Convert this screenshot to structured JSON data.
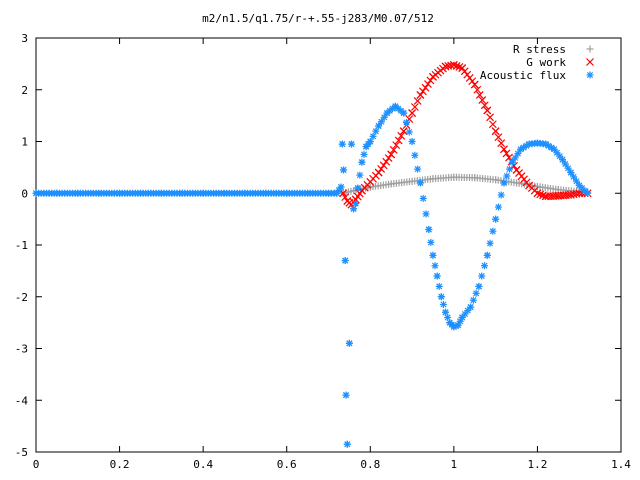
{
  "chart_data": {
    "type": "scatter",
    "title": "m2/n1.5/q1.75/r-+.55-j283/M0.07/512",
    "xlabel": "",
    "ylabel": "",
    "xlim": [
      0,
      1.4
    ],
    "ylim": [
      -5,
      3
    ],
    "x_ticks": [
      "0",
      "0.2",
      "0.4",
      "0.6",
      "0.8",
      "1",
      "1.2",
      "1.4"
    ],
    "y_ticks": [
      "3",
      "2",
      "1",
      "0",
      "-1",
      "-2",
      "-3",
      "-4",
      "-5"
    ],
    "grid": false,
    "legend_position": "top-right",
    "series": [
      {
        "name": "R stress",
        "color": "#a0a0a0",
        "marker": "plus",
        "x": [
          0.735,
          0.76,
          0.8,
          0.85,
          0.9,
          0.95,
          1.0,
          1.05,
          1.1,
          1.15,
          1.2,
          1.25,
          1.3,
          1.32
        ],
        "y": [
          0.0,
          0.05,
          0.12,
          0.18,
          0.23,
          0.28,
          0.31,
          0.3,
          0.26,
          0.2,
          0.13,
          0.07,
          0.03,
          0.02
        ]
      },
      {
        "name": "G work",
        "color": "#ff0000",
        "marker": "cross",
        "x": [
          0.735,
          0.745,
          0.755,
          0.765,
          0.78,
          0.8,
          0.82,
          0.85,
          0.88,
          0.9,
          0.92,
          0.95,
          0.98,
          1.0,
          1.02,
          1.05,
          1.08,
          1.1,
          1.12,
          1.15,
          1.18,
          1.2,
          1.22,
          1.25,
          1.28,
          1.3,
          1.32
        ],
        "y": [
          0.0,
          -0.15,
          -0.22,
          -0.12,
          0.05,
          0.22,
          0.4,
          0.75,
          1.2,
          1.55,
          1.9,
          2.25,
          2.45,
          2.48,
          2.42,
          2.1,
          1.6,
          1.2,
          0.85,
          0.45,
          0.15,
          0.0,
          -0.06,
          -0.05,
          -0.03,
          0.0,
          0.0
        ]
      },
      {
        "name": "Acoustic flux",
        "color": "#1e90ff",
        "marker": "star",
        "x": [
          0.0,
          0.05,
          0.1,
          0.15,
          0.2,
          0.25,
          0.3,
          0.35,
          0.4,
          0.45,
          0.5,
          0.55,
          0.6,
          0.65,
          0.7,
          0.72,
          0.73,
          0.733,
          0.736,
          0.74,
          0.742,
          0.745,
          0.75,
          0.755,
          0.76,
          0.765,
          0.77,
          0.78,
          0.79,
          0.8,
          0.82,
          0.84,
          0.86,
          0.88,
          0.9,
          0.92,
          0.94,
          0.95,
          0.96,
          0.97,
          0.98,
          0.99,
          1.0,
          1.01,
          1.02,
          1.04,
          1.06,
          1.08,
          1.1,
          1.12,
          1.14,
          1.16,
          1.18,
          1.2,
          1.22,
          1.24,
          1.26,
          1.28,
          1.3,
          1.32
        ],
        "y": [
          0,
          0,
          0,
          0,
          0,
          0,
          0,
          0,
          0,
          0,
          0,
          0,
          0,
          0,
          0,
          0,
          0.12,
          0.95,
          0.45,
          -1.3,
          -3.9,
          -4.85,
          -2.9,
          0.95,
          -0.3,
          -0.2,
          0.1,
          0.6,
          0.9,
          1.0,
          1.3,
          1.55,
          1.68,
          1.55,
          1.0,
          0.2,
          -0.7,
          -1.2,
          -1.6,
          -2.0,
          -2.3,
          -2.5,
          -2.58,
          -2.55,
          -2.4,
          -2.2,
          -1.8,
          -1.2,
          -0.5,
          0.2,
          0.6,
          0.85,
          0.95,
          0.97,
          0.95,
          0.85,
          0.65,
          0.4,
          0.15,
          0.0
        ]
      }
    ]
  }
}
